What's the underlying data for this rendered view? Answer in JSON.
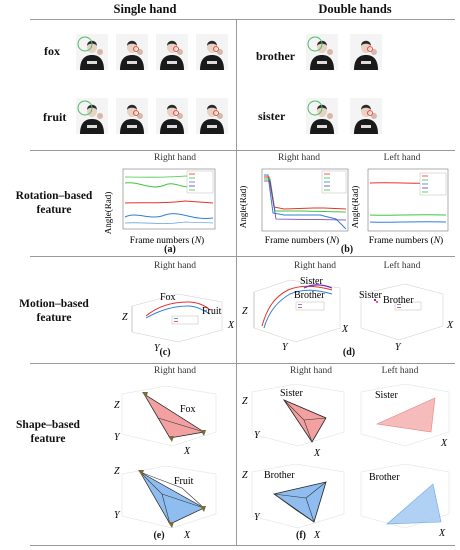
{
  "columns": {
    "single": "Single hand",
    "double": "Double hands"
  },
  "words": {
    "fox": "fox",
    "fruit": "fruit",
    "brother": "brother",
    "sister": "sister"
  },
  "rows": {
    "rotation": "Rotation–based feature",
    "motion": "Motion–based feature",
    "shape": "Shape–based feature"
  },
  "hands": {
    "right": "Right hand",
    "left": "Left hand"
  },
  "axes": {
    "angle": "Angle(Rad)",
    "frames": "Frame numbers (",
    "frames_n": "N",
    "frames_close": ")",
    "x": "X",
    "y": "Y",
    "z": "Z"
  },
  "panels": {
    "a": "(a)",
    "b": "(b)",
    "c": "(c)",
    "d": "(d)",
    "e": "(e)",
    "f": "(f)"
  },
  "traj_labels": {
    "fox": "Fox",
    "fruit": "Fruit",
    "sister": "Sister",
    "brother": "Brother"
  },
  "colors": {
    "red": "#e8322d",
    "green": "#3cc83c",
    "blue": "#2f7fd8",
    "purple": "#6e2fb0",
    "pink_fill": "#f2a0a0",
    "blue_fill": "#8fbdf0",
    "circle": "#4cb86b"
  }
}
